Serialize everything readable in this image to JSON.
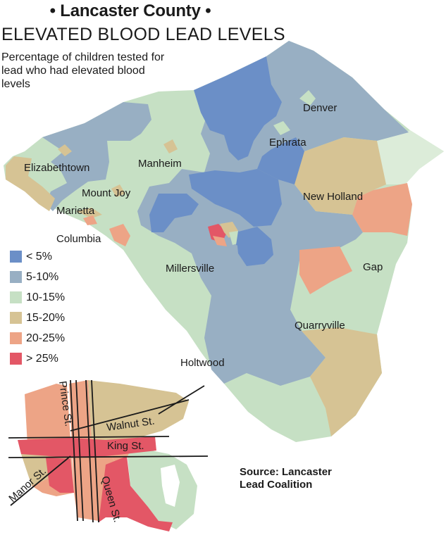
{
  "title": "• Lancaster County •",
  "subtitle": "ELEVATED BLOOD LEAD LEVELS",
  "description": "Percentage of children tested for lead who had elevated blood levels",
  "legend": [
    {
      "label": "< 5%",
      "color": "#6b8fc7"
    },
    {
      "label": "5-10%",
      "color": "#98afc3"
    },
    {
      "label": "10-15%",
      "color": "#c6e0c4"
    },
    {
      "label": "15-20%",
      "color": "#d6c394"
    },
    {
      "label": "20-25%",
      "color": "#eda486"
    },
    {
      "label": "> 25%",
      "color": "#e35766"
    }
  ],
  "towns": {
    "denver": "Denver",
    "ephrata": "Ephrata",
    "elizabethtown": "Elizabethtown",
    "manheim": "Manheim",
    "mount_joy": "Mount Joy",
    "marietta": "Marietta",
    "new_holland": "New Holland",
    "columbia": "Columbia",
    "millersville": "Millersville",
    "gap": "Gap",
    "quarryville": "Quarryville",
    "holtwood": "Holtwood"
  },
  "streets": {
    "prince": "Prince St.",
    "walnut": "Walnut St.",
    "king": "King St.",
    "manor": "Manor St.",
    "queen": "Queen St."
  },
  "source": "Source: Lancaster Lead Coalition"
}
